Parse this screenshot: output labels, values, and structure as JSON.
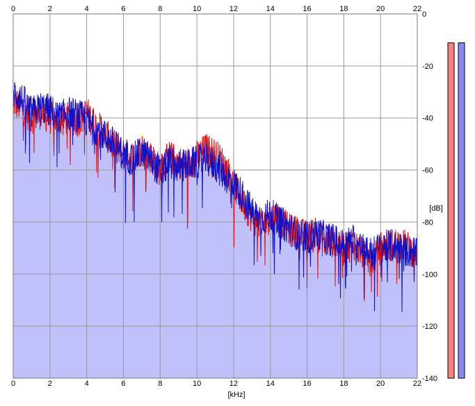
{
  "chart_data": {
    "type": "area",
    "title": "",
    "xlabel": "[kHz]",
    "ylabel": "[dB]",
    "xlim": [
      0,
      22
    ],
    "ylim": [
      -140,
      0
    ],
    "x_ticks": [
      0,
      2,
      4,
      6,
      8,
      10,
      12,
      14,
      16,
      18,
      20,
      22
    ],
    "y_ticks": [
      0,
      -20,
      -40,
      -60,
      -80,
      -100,
      -120,
      -140
    ],
    "grid": true,
    "colors": {
      "red_channel": "#e01010",
      "blue_channel": "#1010c8",
      "fill": "#c0c0fa",
      "grid": "#999999",
      "meter_red": "#fa8080",
      "meter_blue": "#8a8af0"
    },
    "series": [
      {
        "x": [
          0,
          0.5,
          1,
          1.5,
          2,
          2.5,
          3,
          3.5,
          4,
          4.5,
          5,
          5.5,
          6,
          6.5,
          7,
          7.5,
          8,
          8.5,
          9,
          9.5,
          10,
          10.5,
          11,
          11.5,
          12,
          12.5,
          13,
          13.5,
          14,
          14.5,
          15,
          15.5,
          16,
          16.5,
          17,
          17.5,
          18,
          18.5,
          19,
          19.5,
          20,
          20.5,
          21,
          21.5,
          22
        ],
        "values": [
          -34,
          -36,
          -40,
          -38,
          -40,
          -41,
          -40,
          -41,
          -38,
          -43,
          -46,
          -51,
          -54,
          -55,
          -52,
          -55,
          -60,
          -55,
          -57,
          -58,
          -55,
          -52,
          -54,
          -58,
          -66,
          -72,
          -78,
          -81,
          -78,
          -79,
          -83,
          -84,
          -86,
          -85,
          -88,
          -87,
          -91,
          -88,
          -92,
          -95,
          -90,
          -89,
          -88,
          -90,
          -92
        ]
      },
      {
        "x": [
          0,
          0.5,
          1,
          1.5,
          2,
          2.5,
          3,
          3.5,
          4,
          4.5,
          5,
          5.5,
          6,
          6.5,
          7,
          7.5,
          8,
          8.5,
          9,
          9.5,
          10,
          10.5,
          11,
          11.5,
          12,
          12.5,
          13,
          13.5,
          14,
          14.5,
          15,
          15.5,
          16,
          16.5,
          17,
          17.5,
          18,
          18.5,
          19,
          19.5,
          20,
          20.5,
          21,
          21.5,
          22
        ],
        "values": [
          -30,
          -33,
          -38,
          -36,
          -37,
          -40,
          -38,
          -39,
          -41,
          -44,
          -47,
          -50,
          -54,
          -56,
          -53,
          -56,
          -61,
          -57,
          -59,
          -58,
          -57,
          -56,
          -58,
          -62,
          -65,
          -70,
          -76,
          -79,
          -77,
          -80,
          -82,
          -85,
          -86,
          -84,
          -86,
          -87,
          -89,
          -87,
          -90,
          -92,
          -90,
          -89,
          -90,
          -91,
          -92
        ]
      }
    ],
    "level_meters": [
      {
        "channel": "red",
        "level_db": -6
      },
      {
        "channel": "blue",
        "level_db": -6
      }
    ]
  }
}
